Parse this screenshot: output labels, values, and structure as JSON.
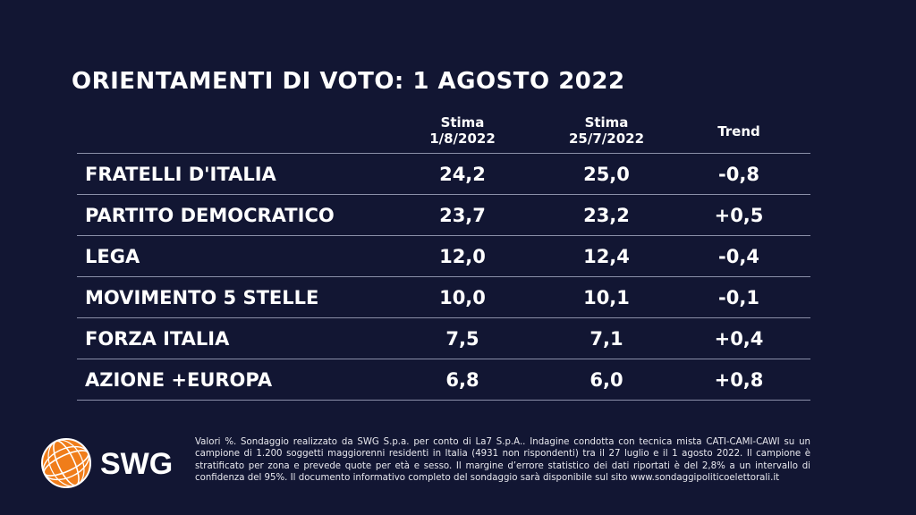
{
  "title": "ORIENTAMENTI DI VOTO: 1 AGOSTO 2022",
  "columns": [
    {
      "line1": "Stima",
      "line2": "1/8/2022"
    },
    {
      "line1": "Stima",
      "line2": "25/7/2022"
    },
    {
      "line1": "Trend",
      "line2": ""
    }
  ],
  "rows": [
    {
      "party": "FRATELLI D'ITALIA",
      "current": "24,2",
      "previous": "25,0",
      "trend": "-0,8"
    },
    {
      "party": "PARTITO DEMOCRATICO",
      "current": "23,7",
      "previous": "23,2",
      "trend": "+0,5"
    },
    {
      "party": "LEGA",
      "current": "12,0",
      "previous": "12,4",
      "trend": "-0,4"
    },
    {
      "party": "MOVIMENTO 5 STELLE",
      "current": "10,0",
      "previous": "10,1",
      "trend": "-0,1"
    },
    {
      "party": "FORZA ITALIA",
      "current": "7,5",
      "previous": "7,1",
      "trend": "+0,4"
    },
    {
      "party": "AZIONE +EUROPA",
      "current": "6,8",
      "previous": "6,0",
      "trend": "+0,8"
    }
  ],
  "logo": {
    "text": "SWG",
    "accent": "#f07d1a"
  },
  "footnote": "Valori %. Sondaggio realizzato da SWG S.p.a. per conto di La7 S.p.A.. Indagine condotta con tecnica mista CATI-CAMI-CAWI su un campione di 1.200 soggetti maggiorenni residenti in Italia (4931 non rispondenti) tra il 27 luglio e il 1 agosto 2022. Il campione è stratificato per zona e prevede quote per età e sesso. Il margine d’errore statistico dei dati riportati è del 2,8% a un intervallo di confidenza del 95%. Il documento informativo completo del sondaggio sarà disponibile sul sito www.sondaggipoliticoelettorali.it",
  "chart_data": {
    "type": "table",
    "title": "ORIENTAMENTI DI VOTO: 1 AGOSTO 2022",
    "columns": [
      "Stima 1/8/2022",
      "Stima 25/7/2022",
      "Trend"
    ],
    "categories": [
      "FRATELLI D'ITALIA",
      "PARTITO DEMOCRATICO",
      "LEGA",
      "MOVIMENTO 5 STELLE",
      "FORZA ITALIA",
      "AZIONE +EUROPA"
    ],
    "series": [
      {
        "name": "Stima 1/8/2022",
        "values": [
          24.2,
          23.7,
          12.0,
          10.0,
          7.5,
          6.8
        ]
      },
      {
        "name": "Stima 25/7/2022",
        "values": [
          25.0,
          23.2,
          12.4,
          10.1,
          7.1,
          6.0
        ]
      },
      {
        "name": "Trend",
        "values": [
          -0.8,
          0.5,
          -0.4,
          -0.1,
          0.4,
          0.8
        ]
      }
    ]
  }
}
